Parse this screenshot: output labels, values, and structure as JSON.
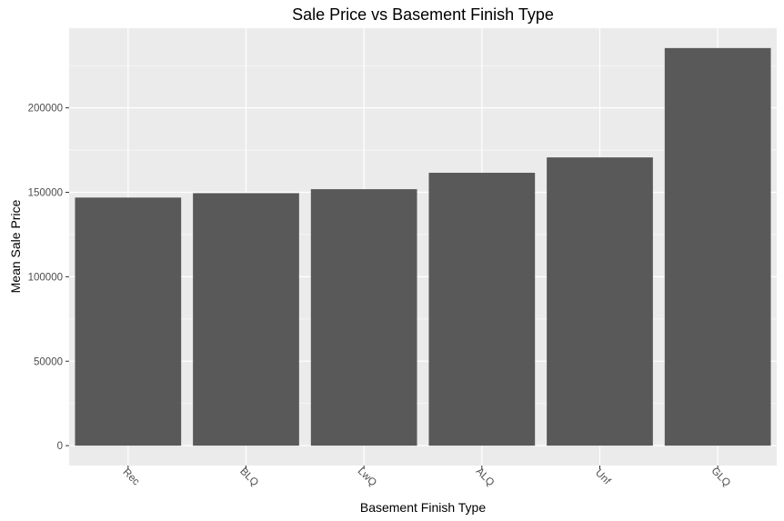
{
  "chart_data": {
    "type": "bar",
    "title": "Sale Price vs Basement Finish Type",
    "xlabel": "Basement Finish Type",
    "ylabel": "Mean Sale Price",
    "categories": [
      "Rec",
      "BLQ",
      "LwQ",
      "ALQ",
      "Unf",
      "GLQ"
    ],
    "values": [
      146890,
      149490,
      151850,
      161570,
      170670,
      235410
    ],
    "ylim": [
      -11770,
      247180
    ],
    "yticks": [
      0,
      50000,
      100000,
      150000,
      200000
    ],
    "ytick_labels": [
      "0",
      "50000",
      "100000",
      "150000",
      "200000"
    ],
    "grid": true,
    "legend": "none",
    "colors": {
      "bar": "#595959",
      "panel": "#ebebeb",
      "grid_major": "#ffffff",
      "tick_text": "#4d4d4d"
    }
  }
}
